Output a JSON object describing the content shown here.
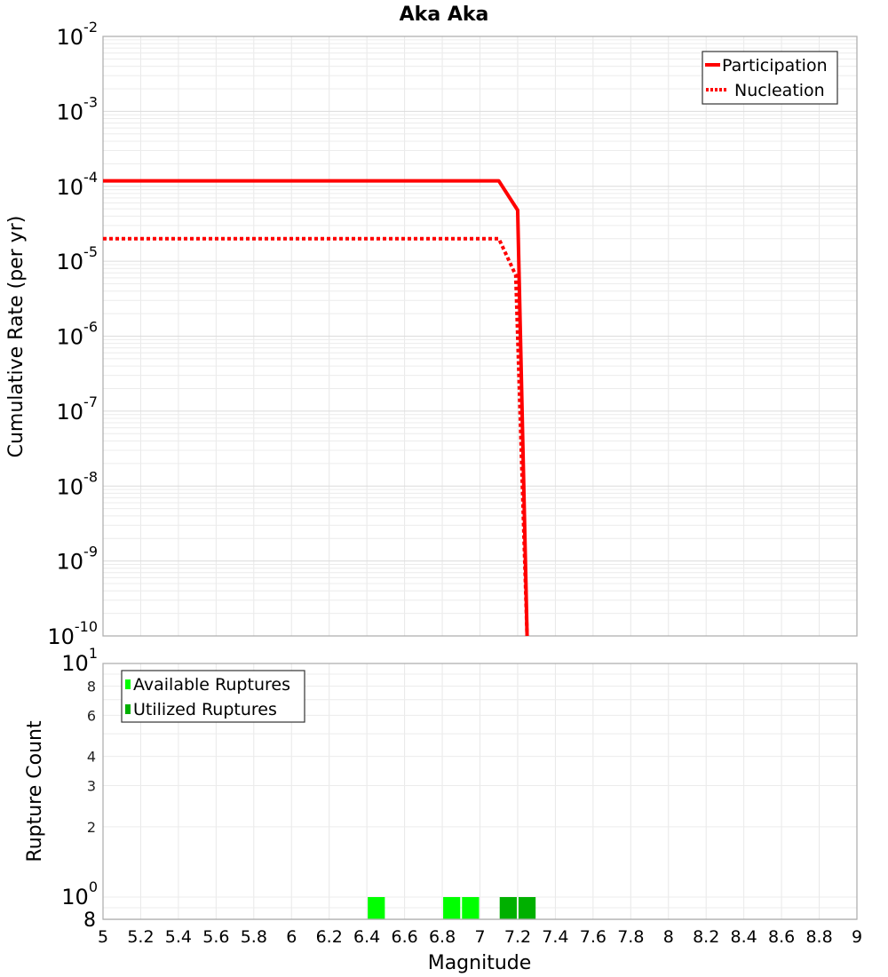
{
  "chart_data": [
    {
      "type": "line",
      "title": "Aka Aka",
      "xlabel": "Magnitude",
      "ylabel": "Cumulative Rate (per yr)",
      "yscale": "log",
      "ylim": [
        1e-10,
        0.01
      ],
      "xlim": [
        5,
        9
      ],
      "grid": true,
      "legend_position": "top-right",
      "y_tick_labels": [
        "10^-2",
        "10^-3",
        "10^-4",
        "10^-5",
        "10^-6",
        "10^-7",
        "10^-8",
        "10^-9",
        "10^-10"
      ],
      "series": [
        {
          "name": "Participation",
          "style": "solid",
          "color": "#ff0000",
          "x": [
            5.0,
            7.1,
            7.2,
            7.25
          ],
          "y": [
            0.000118,
            0.000118,
            4.8e-05,
            1e-10
          ]
        },
        {
          "name": "Nucleation",
          "style": "dotted",
          "color": "#ff0000",
          "x": [
            5.0,
            7.1,
            7.19,
            7.25
          ],
          "y": [
            2e-05,
            2e-05,
            6.5e-06,
            1e-10
          ]
        }
      ]
    },
    {
      "type": "bar",
      "title": "",
      "xlabel": "Magnitude",
      "ylabel": "Rupture Count",
      "yscale": "log",
      "ylim": [
        0.8,
        10
      ],
      "xlim": [
        5,
        9
      ],
      "grid": true,
      "legend_position": "top-left",
      "y_tick_labels": [
        "8",
        "10^0",
        "2",
        "3",
        "4",
        "6",
        "8",
        "10^1"
      ],
      "x_tick_labels": [
        "5",
        "5.2",
        "5.4",
        "5.6",
        "5.8",
        "6",
        "6.2",
        "6.4",
        "6.6",
        "6.8",
        "7",
        "7.2",
        "7.4",
        "7.6",
        "7.8",
        "8",
        "8.2",
        "8.4",
        "8.6",
        "8.8",
        "9"
      ],
      "series": [
        {
          "name": "Available Ruptures",
          "color": "#00ff00",
          "x": [
            6.45,
            6.85,
            6.95
          ],
          "values": [
            1,
            1,
            1
          ]
        },
        {
          "name": "Utilized Ruptures",
          "color": "#00b000",
          "x": [
            7.15,
            7.25
          ],
          "values": [
            1,
            1
          ]
        }
      ]
    }
  ],
  "labels": {
    "title": "Aka Aka",
    "top_ylabel": "Cumulative Rate (per yr)",
    "bottom_ylabel": "Rupture Count",
    "xlabel": "Magnitude",
    "legend_top": [
      "Participation",
      "Nucleation"
    ],
    "legend_bottom": [
      "Available Ruptures",
      "Utilized Ruptures"
    ]
  }
}
